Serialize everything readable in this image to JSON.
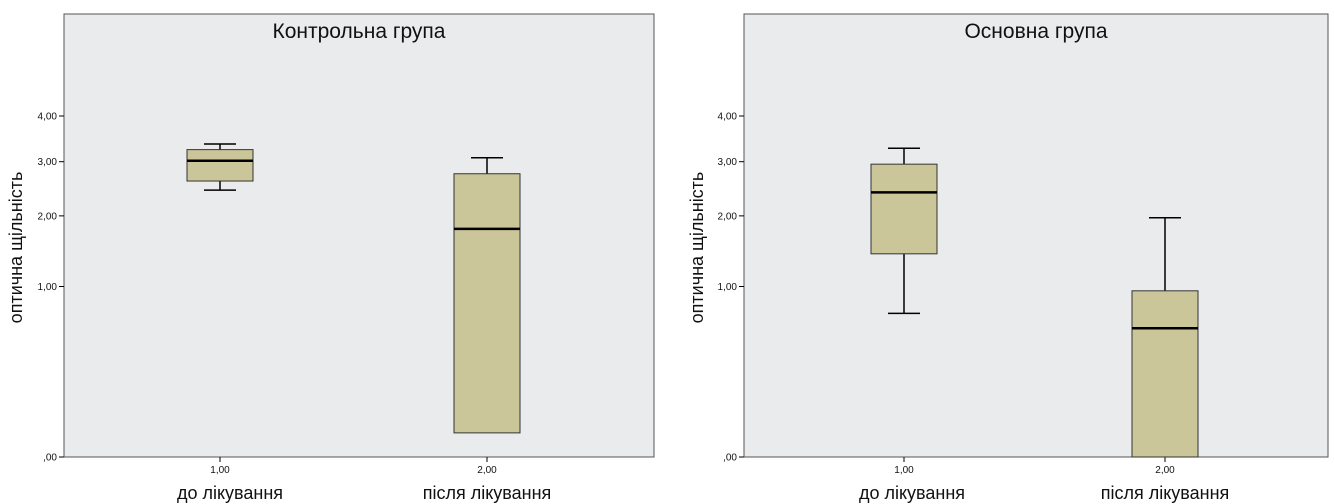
{
  "chart_data": [
    {
      "type": "box",
      "title": "Контрольна група",
      "ylabel": "оптична щільність",
      "yscale": "sqrt",
      "ylim": [
        0,
        4.8
      ],
      "yticks": [
        0,
        1,
        2,
        3,
        4
      ],
      "ytick_labels": [
        ",00",
        "1,00",
        "2,00",
        "3,00",
        "4,00"
      ],
      "xtick_labels": [
        "1,00",
        "2,00"
      ],
      "categories": [
        "до лікування",
        "після лікування"
      ],
      "boxes": [
        {
          "min": 2.45,
          "q1": 2.62,
          "median": 3.02,
          "q3": 3.25,
          "max": 3.37
        },
        {
          "min": 0.02,
          "q1": 0.02,
          "median": 1.79,
          "q3": 2.76,
          "max": 3.08
        }
      ],
      "grid": false
    },
    {
      "type": "box",
      "title": "Основна група",
      "ylabel": "оптична щільність",
      "yscale": "sqrt",
      "ylim": [
        0,
        4.8
      ],
      "yticks": [
        0,
        1,
        2,
        3,
        4
      ],
      "ytick_labels": [
        ",00",
        "1,00",
        "2,00",
        "3,00",
        "4,00"
      ],
      "xtick_labels": [
        "1,00",
        "2,00"
      ],
      "categories": [
        "до лікування",
        "після лікування"
      ],
      "boxes": [
        {
          "min": 0.71,
          "q1": 1.42,
          "median": 2.41,
          "q3": 2.95,
          "max": 3.28
        },
        {
          "min": 0.0,
          "q1": 0.0,
          "median": 0.57,
          "q3": 0.95,
          "max": 1.97
        }
      ],
      "grid": false
    }
  ],
  "style": {
    "box_fill": "#cbc69a",
    "plot_background": "#eaebed",
    "line_color": "#000000",
    "frame_color": "#555555"
  }
}
